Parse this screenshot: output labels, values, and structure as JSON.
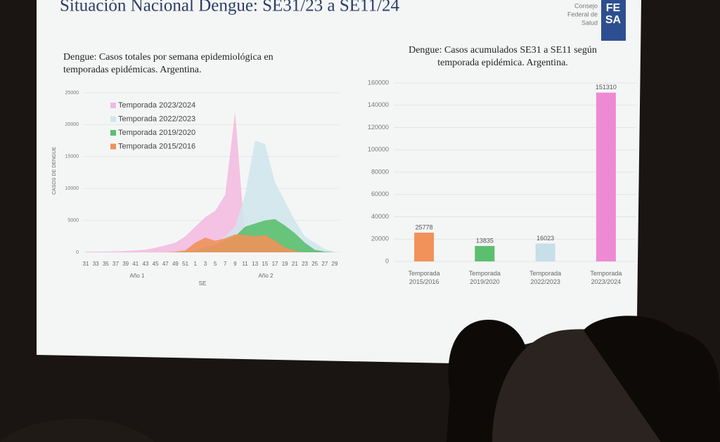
{
  "slide_title": "Situación Nacional Dengue: SE31/23 a SE11/24",
  "logo": {
    "lines": [
      "Consejo",
      "Federal de",
      "Salud"
    ],
    "mark": [
      "FE",
      "SA"
    ]
  },
  "chart_data": [
    {
      "type": "area",
      "title": "Dengue: Casos totales por semana epidemiológica en temporadas epidémicas. Argentina.",
      "y_label": "CASOS DE DENGUE",
      "x_label": "SE",
      "x_group_labels": [
        "Año 1",
        "Año 2"
      ],
      "categories": [
        "31",
        "33",
        "35",
        "37",
        "39",
        "41",
        "43",
        "45",
        "47",
        "49",
        "51",
        "1",
        "3",
        "5",
        "7",
        "9",
        "11",
        "13",
        "15",
        "17",
        "19",
        "21",
        "23",
        "25",
        "27",
        "29"
      ],
      "ylim": [
        0,
        25000
      ],
      "yticks": [
        0,
        5000,
        10000,
        15000,
        20000,
        25000
      ],
      "grid": true,
      "series": [
        {
          "name": "Temporada 2023/2024",
          "color": "#f3b9df",
          "values": [
            100,
            100,
            120,
            150,
            200,
            300,
            400,
            700,
            1100,
            1500,
            2500,
            4000,
            5500,
            6500,
            9000,
            22000,
            2000,
            null,
            null,
            null,
            null,
            null,
            null,
            null,
            null,
            null
          ]
        },
        {
          "name": "Temporada 2022/2023",
          "color": "#cfe5ec",
          "values": [
            0,
            0,
            0,
            0,
            0,
            0,
            0,
            0,
            0,
            100,
            200,
            500,
            800,
            1500,
            2500,
            4000,
            9000,
            17500,
            17000,
            11000,
            8000,
            5000,
            2500,
            1500,
            500,
            100
          ]
        },
        {
          "name": "Temporada 2019/2020",
          "color": "#5cbf6e",
          "values": [
            0,
            0,
            0,
            0,
            0,
            0,
            0,
            0,
            0,
            0,
            100,
            300,
            800,
            1200,
            1800,
            2500,
            4000,
            4500,
            5000,
            5200,
            4200,
            3000,
            1500,
            400,
            100,
            0
          ]
        },
        {
          "name": "Temporada 2015/2016",
          "color": "#f0925a",
          "values": [
            0,
            0,
            0,
            0,
            0,
            0,
            0,
            0,
            0,
            100,
            300,
            1500,
            2300,
            1800,
            2200,
            2800,
            2700,
            2500,
            2700,
            1800,
            800,
            200,
            0,
            0,
            0,
            0
          ]
        }
      ]
    },
    {
      "type": "bar",
      "title": "Dengue: Casos acumulados SE31 a SE11 según temporada epidémica. Argentina.",
      "categories": [
        "Temporada 2015/2016",
        "Temporada 2019/2020",
        "Temporada 2022/2023",
        "Temporada 2023/2024"
      ],
      "values": [
        25778,
        13835,
        16023,
        151310
      ],
      "colors": [
        "#f0925a",
        "#5cbf6e",
        "#c6dfe8",
        "#ee8ad4"
      ],
      "ylim": [
        0,
        160000
      ],
      "yticks": [
        0,
        20000,
        40000,
        60000,
        80000,
        100000,
        120000,
        140000,
        160000
      ],
      "grid": true
    }
  ]
}
